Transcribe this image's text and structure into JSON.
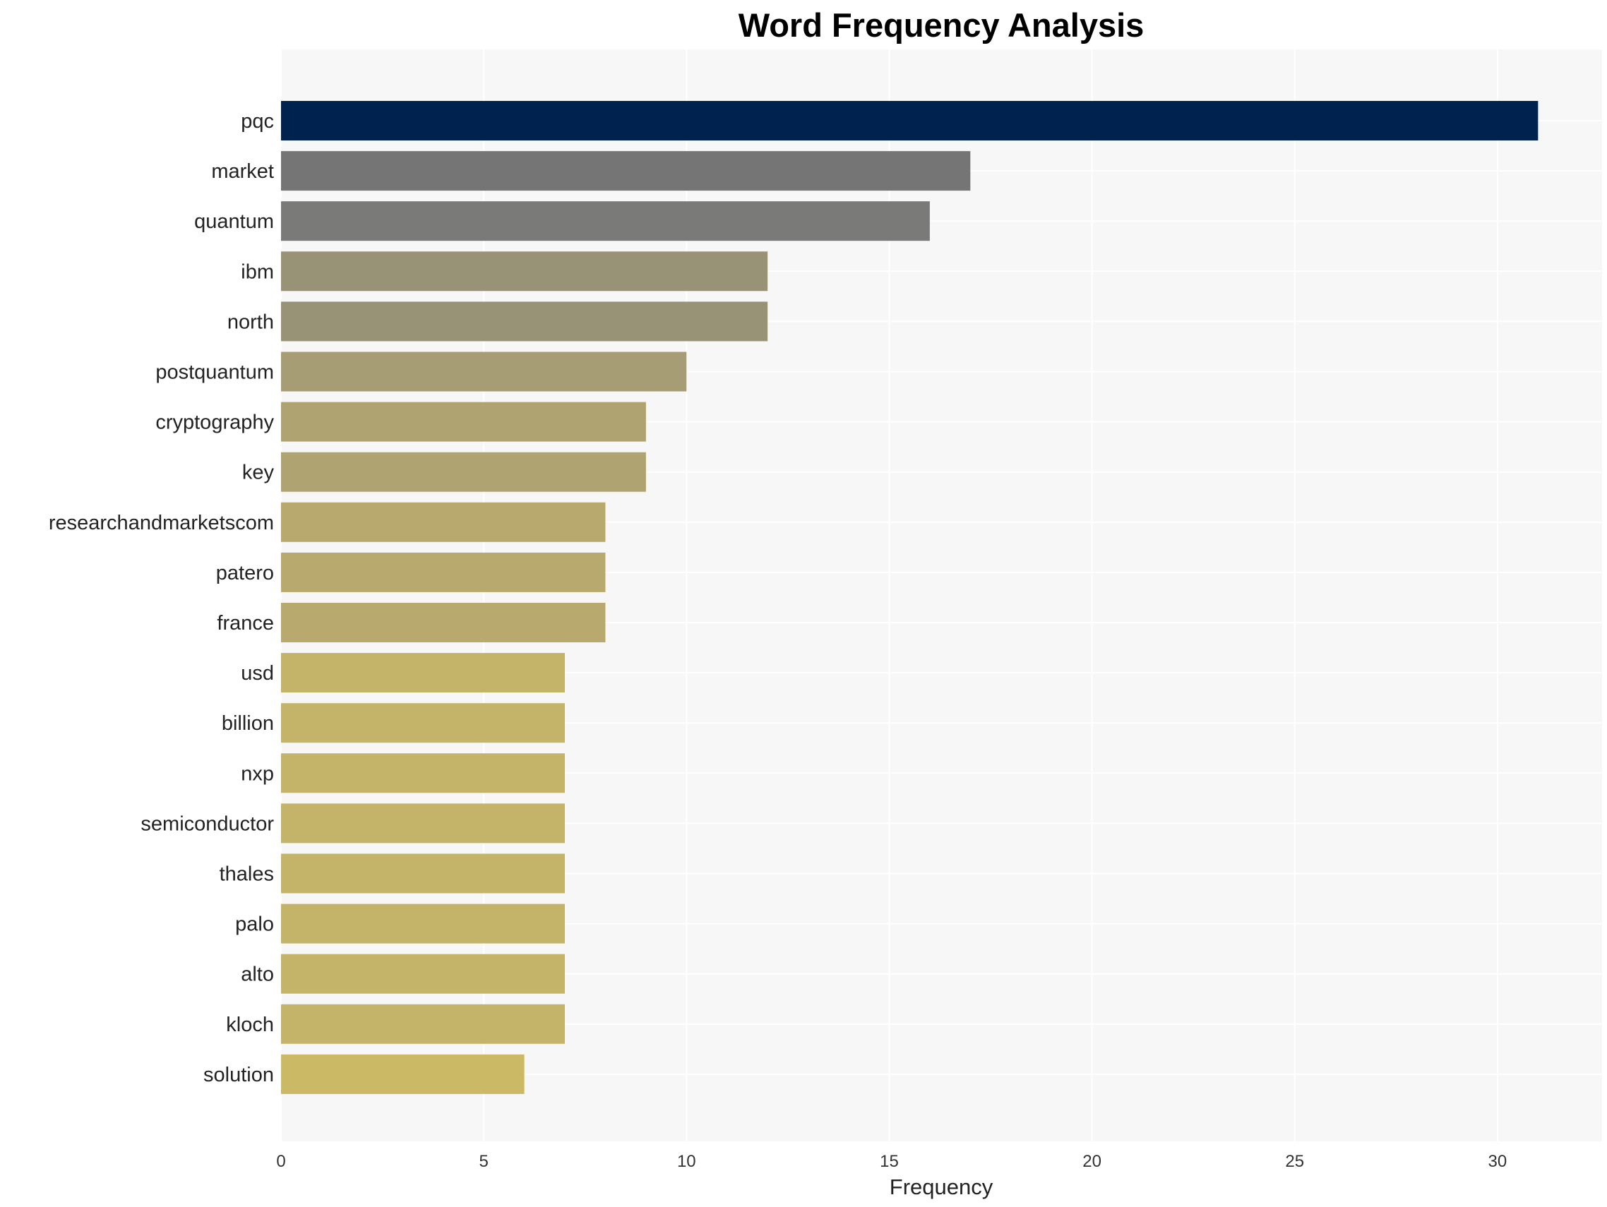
{
  "chart_data": {
    "type": "bar",
    "orientation": "horizontal",
    "title": "Word Frequency Analysis",
    "xlabel": "Frequency",
    "ylabel": "",
    "xlim": [
      0,
      32.6
    ],
    "xticks": [
      0,
      5,
      10,
      15,
      20,
      25,
      30
    ],
    "grid": true,
    "categories": [
      "pqc",
      "market",
      "quantum",
      "ibm",
      "north",
      "postquantum",
      "cryptography",
      "key",
      "researchandmarketscom",
      "patero",
      "france",
      "usd",
      "billion",
      "nxp",
      "semiconductor",
      "thales",
      "palo",
      "alto",
      "kloch",
      "solution"
    ],
    "values": [
      31,
      17,
      16,
      12,
      12,
      10,
      9,
      9,
      8,
      8,
      8,
      7,
      7,
      7,
      7,
      7,
      7,
      7,
      7,
      6
    ],
    "colors": [
      "#00224e",
      "#757575",
      "#7a7a78",
      "#989377",
      "#989377",
      "#a69d75",
      "#afa471",
      "#afa471",
      "#b8aa6e",
      "#b8aa6e",
      "#b8aa6e",
      "#c4b46a",
      "#c4b46a",
      "#c4b46a",
      "#c4b46a",
      "#c4b46a",
      "#c4b46a",
      "#c4b46a",
      "#c4b46a",
      "#cbb966"
    ],
    "plot_background": "#f7f7f7"
  }
}
